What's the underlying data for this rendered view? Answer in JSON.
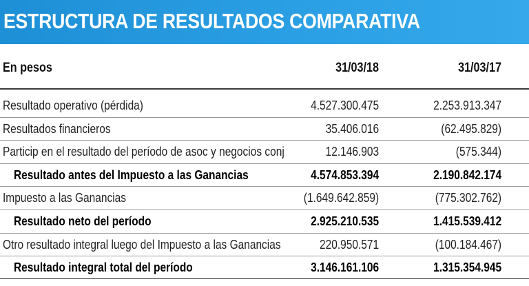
{
  "title": "ESTRUCTURA DE RESULTADOS COMPARATIVA",
  "header": {
    "label": "En pesos",
    "col1": "31/03/18",
    "col2": "31/03/17"
  },
  "rows": [
    {
      "label": "Resultado operativo (pérdida)",
      "v1": "4.527.300.475",
      "v2": "2.253.913.347",
      "bold": false
    },
    {
      "label": "Resultados financieros",
      "v1": "35.406.016",
      "v2": "(62.495.829)",
      "bold": false
    },
    {
      "label": "Particip en el resultado del período de asoc y negocios conj",
      "v1": "12.146.903",
      "v2": "(575.344)",
      "bold": false
    },
    {
      "label": "Resultado antes del Impuesto a las Ganancias",
      "v1": "4.574.853.394",
      "v2": "2.190.842.174",
      "bold": true
    },
    {
      "label": "Impuesto a las Ganancias",
      "v1": "(1.649.642.859)",
      "v2": "(775.302.762)",
      "bold": false
    },
    {
      "label": "Resultado neto del período",
      "v1": "2.925.210.535",
      "v2": "1.415.539.412",
      "bold": true
    },
    {
      "label": "Otro resultado integral luego del Impuesto a las Ganancias",
      "v1": "220.950.571",
      "v2": "(100.184.467)",
      "bold": false
    },
    {
      "label": "Resultado integral total del período",
      "v1": "3.146.161.106",
      "v2": "1.315.354.945",
      "bold": true
    }
  ]
}
